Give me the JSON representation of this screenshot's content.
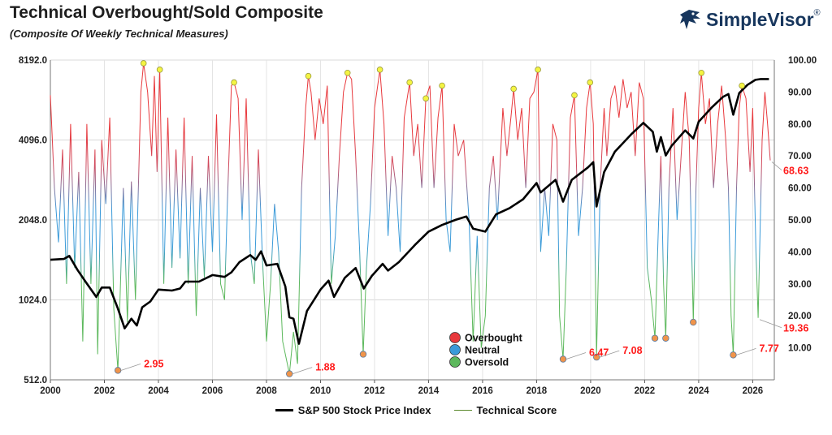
{
  "title": "Technical Overbought/Sold Composite",
  "subtitle": "(Composite Of Weekly Technical Measures)",
  "brand": {
    "name": "SimpleVisor",
    "mark": "®",
    "color": "#17365d"
  },
  "chart_data": {
    "type": "line",
    "x_range": [
      2000,
      2026.8
    ],
    "x_ticks": [
      "2000",
      "2002",
      "2004",
      "2006",
      "2008",
      "2010",
      "2012",
      "2014",
      "2016",
      "2018",
      "2020",
      "2022",
      "2024",
      "2026"
    ],
    "y_left": {
      "scale": "log2",
      "range": [
        512,
        8192
      ],
      "ticks": [
        "512.0",
        "1024.0",
        "2048.0",
        "4096.0",
        "8192.0"
      ]
    },
    "y_right": {
      "range": [
        0,
        100
      ],
      "ticks": [
        "10.00",
        "20.00",
        "30.00",
        "40.00",
        "50.00",
        "60.00",
        "70.00",
        "80.00",
        "90.00",
        "100.00"
      ]
    },
    "grid": true,
    "colors": {
      "overbought": "#e8383c",
      "neutral": "#3a9ad9",
      "oversold": "#5cb85c",
      "price": "#000000",
      "callout": "#ff1a1a",
      "marker_top": "#f4f442",
      "marker_bottom": "#f0944a"
    },
    "series": [
      {
        "name": "S&P 500 Stock Price Index",
        "axis": "left",
        "points": [
          [
            2000.0,
            1450
          ],
          [
            2000.5,
            1460
          ],
          [
            2000.7,
            1500
          ],
          [
            2001.0,
            1330
          ],
          [
            2001.3,
            1200
          ],
          [
            2001.7,
            1050
          ],
          [
            2001.9,
            1140
          ],
          [
            2002.2,
            1140
          ],
          [
            2002.5,
            950
          ],
          [
            2002.75,
            800
          ],
          [
            2003.0,
            870
          ],
          [
            2003.2,
            820
          ],
          [
            2003.4,
            960
          ],
          [
            2003.7,
            1010
          ],
          [
            2004.0,
            1120
          ],
          [
            2004.5,
            1110
          ],
          [
            2004.8,
            1130
          ],
          [
            2005.0,
            1200
          ],
          [
            2005.5,
            1200
          ],
          [
            2006.0,
            1270
          ],
          [
            2006.45,
            1250
          ],
          [
            2006.7,
            1300
          ],
          [
            2007.0,
            1420
          ],
          [
            2007.4,
            1510
          ],
          [
            2007.6,
            1450
          ],
          [
            2007.8,
            1560
          ],
          [
            2008.0,
            1380
          ],
          [
            2008.4,
            1400
          ],
          [
            2008.7,
            1150
          ],
          [
            2008.85,
            880
          ],
          [
            2009.0,
            870
          ],
          [
            2009.2,
            700
          ],
          [
            2009.5,
            930
          ],
          [
            2010.0,
            1120
          ],
          [
            2010.3,
            1210
          ],
          [
            2010.5,
            1050
          ],
          [
            2010.9,
            1240
          ],
          [
            2011.3,
            1350
          ],
          [
            2011.6,
            1130
          ],
          [
            2011.9,
            1260
          ],
          [
            2012.3,
            1400
          ],
          [
            2012.5,
            1320
          ],
          [
            2012.9,
            1420
          ],
          [
            2013.5,
            1650
          ],
          [
            2014.0,
            1850
          ],
          [
            2014.5,
            1960
          ],
          [
            2015.0,
            2050
          ],
          [
            2015.4,
            2110
          ],
          [
            2015.65,
            1900
          ],
          [
            2016.1,
            1850
          ],
          [
            2016.5,
            2150
          ],
          [
            2017.0,
            2270
          ],
          [
            2017.5,
            2450
          ],
          [
            2018.0,
            2820
          ],
          [
            2018.15,
            2600
          ],
          [
            2018.7,
            2900
          ],
          [
            2018.98,
            2400
          ],
          [
            2019.3,
            2900
          ],
          [
            2019.9,
            3230
          ],
          [
            2020.1,
            3380
          ],
          [
            2020.22,
            2300
          ],
          [
            2020.5,
            3100
          ],
          [
            2020.9,
            3700
          ],
          [
            2021.5,
            4300
          ],
          [
            2021.95,
            4750
          ],
          [
            2022.3,
            4400
          ],
          [
            2022.45,
            3700
          ],
          [
            2022.6,
            4200
          ],
          [
            2022.78,
            3580
          ],
          [
            2023.0,
            3900
          ],
          [
            2023.5,
            4450
          ],
          [
            2023.8,
            4150
          ],
          [
            2024.0,
            4800
          ],
          [
            2024.5,
            5450
          ],
          [
            2024.9,
            5950
          ],
          [
            2025.1,
            6100
          ],
          [
            2025.28,
            5100
          ],
          [
            2025.5,
            6150
          ],
          [
            2025.8,
            6600
          ],
          [
            2026.1,
            6900
          ],
          [
            2026.3,
            6950
          ],
          [
            2026.6,
            6950
          ]
        ]
      },
      {
        "name": "Technical Score",
        "axis": "right",
        "points": [
          [
            2000.0,
            89
          ],
          [
            2000.15,
            60
          ],
          [
            2000.3,
            43
          ],
          [
            2000.45,
            72
          ],
          [
            2000.6,
            30
          ],
          [
            2000.75,
            80
          ],
          [
            2000.9,
            35
          ],
          [
            2001.05,
            65
          ],
          [
            2001.2,
            12
          ],
          [
            2001.35,
            80
          ],
          [
            2001.5,
            30
          ],
          [
            2001.65,
            72
          ],
          [
            2001.75,
            8
          ],
          [
            2001.9,
            75
          ],
          [
            2002.05,
            55
          ],
          [
            2002.2,
            82
          ],
          [
            2002.35,
            22
          ],
          [
            2002.5,
            2.95
          ],
          [
            2002.7,
            60
          ],
          [
            2002.85,
            18
          ],
          [
            2003.0,
            62
          ],
          [
            2003.15,
            25
          ],
          [
            2003.35,
            90
          ],
          [
            2003.45,
            99
          ],
          [
            2003.6,
            90
          ],
          [
            2003.75,
            70
          ],
          [
            2003.85,
            95
          ],
          [
            2003.95,
            65
          ],
          [
            2004.05,
            97
          ],
          [
            2004.2,
            30
          ],
          [
            2004.35,
            82
          ],
          [
            2004.5,
            35
          ],
          [
            2004.65,
            72
          ],
          [
            2004.8,
            38
          ],
          [
            2004.95,
            82
          ],
          [
            2005.1,
            30
          ],
          [
            2005.25,
            70
          ],
          [
            2005.4,
            20
          ],
          [
            2005.55,
            60
          ],
          [
            2005.7,
            32
          ],
          [
            2005.85,
            70
          ],
          [
            2006.0,
            40
          ],
          [
            2006.15,
            83
          ],
          [
            2006.3,
            30
          ],
          [
            2006.45,
            25
          ],
          [
            2006.55,
            55
          ],
          [
            2006.7,
            92
          ],
          [
            2006.8,
            93
          ],
          [
            2006.95,
            88
          ],
          [
            2007.1,
            50
          ],
          [
            2007.25,
            88
          ],
          [
            2007.4,
            40
          ],
          [
            2007.55,
            30
          ],
          [
            2007.7,
            72
          ],
          [
            2007.85,
            38
          ],
          [
            2008.0,
            12
          ],
          [
            2008.15,
            30
          ],
          [
            2008.3,
            55
          ],
          [
            2008.45,
            40
          ],
          [
            2008.6,
            12
          ],
          [
            2008.85,
            1.88
          ],
          [
            2009.0,
            15
          ],
          [
            2009.15,
            5
          ],
          [
            2009.3,
            60
          ],
          [
            2009.45,
            85
          ],
          [
            2009.55,
            95
          ],
          [
            2009.65,
            90
          ],
          [
            2009.8,
            75
          ],
          [
            2009.95,
            88
          ],
          [
            2010.1,
            80
          ],
          [
            2010.25,
            92
          ],
          [
            2010.4,
            30
          ],
          [
            2010.55,
            45
          ],
          [
            2010.7,
            70
          ],
          [
            2010.85,
            90
          ],
          [
            2011.0,
            96
          ],
          [
            2011.15,
            94
          ],
          [
            2011.3,
            70
          ],
          [
            2011.45,
            40
          ],
          [
            2011.58,
            8
          ],
          [
            2011.7,
            35
          ],
          [
            2011.85,
            55
          ],
          [
            2012.0,
            85
          ],
          [
            2012.2,
            97
          ],
          [
            2012.35,
            80
          ],
          [
            2012.5,
            45
          ],
          [
            2012.65,
            70
          ],
          [
            2012.8,
            60
          ],
          [
            2012.95,
            40
          ],
          [
            2013.1,
            82
          ],
          [
            2013.3,
            93
          ],
          [
            2013.45,
            70
          ],
          [
            2013.6,
            80
          ],
          [
            2013.75,
            60
          ],
          [
            2013.9,
            88
          ],
          [
            2014.05,
            92
          ],
          [
            2014.2,
            60
          ],
          [
            2014.35,
            82
          ],
          [
            2014.5,
            92
          ],
          [
            2014.65,
            50
          ],
          [
            2014.8,
            40
          ],
          [
            2014.95,
            80
          ],
          [
            2015.1,
            70
          ],
          [
            2015.3,
            75
          ],
          [
            2015.5,
            50
          ],
          [
            2015.65,
            12
          ],
          [
            2015.8,
            45
          ],
          [
            2015.95,
            10
          ],
          [
            2016.1,
            20
          ],
          [
            2016.25,
            60
          ],
          [
            2016.4,
            70
          ],
          [
            2016.55,
            50
          ],
          [
            2016.75,
            85
          ],
          [
            2016.9,
            70
          ],
          [
            2017.05,
            82
          ],
          [
            2017.15,
            91
          ],
          [
            2017.3,
            75
          ],
          [
            2017.45,
            85
          ],
          [
            2017.6,
            60
          ],
          [
            2017.75,
            88
          ],
          [
            2017.9,
            90
          ],
          [
            2018.05,
            97
          ],
          [
            2018.15,
            40
          ],
          [
            2018.3,
            60
          ],
          [
            2018.45,
            45
          ],
          [
            2018.6,
            80
          ],
          [
            2018.75,
            75
          ],
          [
            2018.85,
            20
          ],
          [
            2018.98,
            6.47
          ],
          [
            2019.1,
            35
          ],
          [
            2019.25,
            82
          ],
          [
            2019.4,
            89
          ],
          [
            2019.55,
            45
          ],
          [
            2019.7,
            60
          ],
          [
            2019.85,
            85
          ],
          [
            2019.98,
            93
          ],
          [
            2020.1,
            80
          ],
          [
            2020.22,
            7.08
          ],
          [
            2020.35,
            60
          ],
          [
            2020.5,
            85
          ],
          [
            2020.6,
            70
          ],
          [
            2020.75,
            88
          ],
          [
            2020.9,
            92
          ],
          [
            2021.05,
            82
          ],
          [
            2021.2,
            94
          ],
          [
            2021.35,
            85
          ],
          [
            2021.5,
            90
          ],
          [
            2021.65,
            70
          ],
          [
            2021.8,
            93
          ],
          [
            2021.95,
            88
          ],
          [
            2022.1,
            35
          ],
          [
            2022.25,
            25
          ],
          [
            2022.38,
            13
          ],
          [
            2022.5,
            45
          ],
          [
            2022.6,
            70
          ],
          [
            2022.7,
            30
          ],
          [
            2022.78,
            13
          ],
          [
            2022.9,
            60
          ],
          [
            2023.05,
            85
          ],
          [
            2023.2,
            50
          ],
          [
            2023.35,
            70
          ],
          [
            2023.5,
            90
          ],
          [
            2023.65,
            75
          ],
          [
            2023.8,
            18
          ],
          [
            2023.9,
            60
          ],
          [
            2024.0,
            85
          ],
          [
            2024.1,
            96
          ],
          [
            2024.25,
            80
          ],
          [
            2024.4,
            88
          ],
          [
            2024.55,
            60
          ],
          [
            2024.7,
            80
          ],
          [
            2024.85,
            92
          ],
          [
            2025.0,
            75
          ],
          [
            2025.1,
            60
          ],
          [
            2025.2,
            20
          ],
          [
            2025.28,
            7.77
          ],
          [
            2025.4,
            60
          ],
          [
            2025.5,
            85
          ],
          [
            2025.6,
            92
          ],
          [
            2025.75,
            88
          ],
          [
            2025.9,
            65
          ],
          [
            2026.0,
            85
          ],
          [
            2026.12,
            40
          ],
          [
            2026.2,
            19.36
          ],
          [
            2026.35,
            75
          ],
          [
            2026.45,
            90
          ],
          [
            2026.55,
            80
          ],
          [
            2026.65,
            68.63
          ]
        ]
      }
    ],
    "top_markers": [
      2003.45,
      2004.05,
      2006.8,
      2009.55,
      2011.0,
      2012.2,
      2013.3,
      2013.9,
      2014.5,
      2017.15,
      2018.05,
      2019.4,
      2019.98,
      2024.1,
      2025.6
    ],
    "bottom_markers": [
      {
        "x": 2002.5,
        "y": 2.95,
        "label": "2.95"
      },
      {
        "x": 2008.85,
        "y": 1.88,
        "label": "1.88"
      },
      {
        "x": 2011.58,
        "y": 8,
        "label": ""
      },
      {
        "x": 2018.98,
        "y": 6.47,
        "label": "6.47"
      },
      {
        "x": 2020.22,
        "y": 7.08,
        "label": "7.08"
      },
      {
        "x": 2022.38,
        "y": 13,
        "label": ""
      },
      {
        "x": 2022.78,
        "y": 13,
        "label": ""
      },
      {
        "x": 2023.8,
        "y": 18,
        "label": ""
      },
      {
        "x": 2025.28,
        "y": 7.77,
        "label": "7.77"
      }
    ],
    "end_labels": [
      {
        "x": 2026.65,
        "y": 68.63,
        "label": "68.63"
      },
      {
        "x": 2026.2,
        "y": 19.36,
        "label": "19.36"
      }
    ],
    "zone_legend": [
      {
        "label": "Overbought",
        "color": "#e8383c"
      },
      {
        "label": "Neutral",
        "color": "#3a9ad9"
      },
      {
        "label": "Oversold",
        "color": "#5cb85c"
      }
    ],
    "legend": [
      {
        "label": "S&P 500 Stock Price Index"
      },
      {
        "label": "Technical Score"
      }
    ]
  }
}
